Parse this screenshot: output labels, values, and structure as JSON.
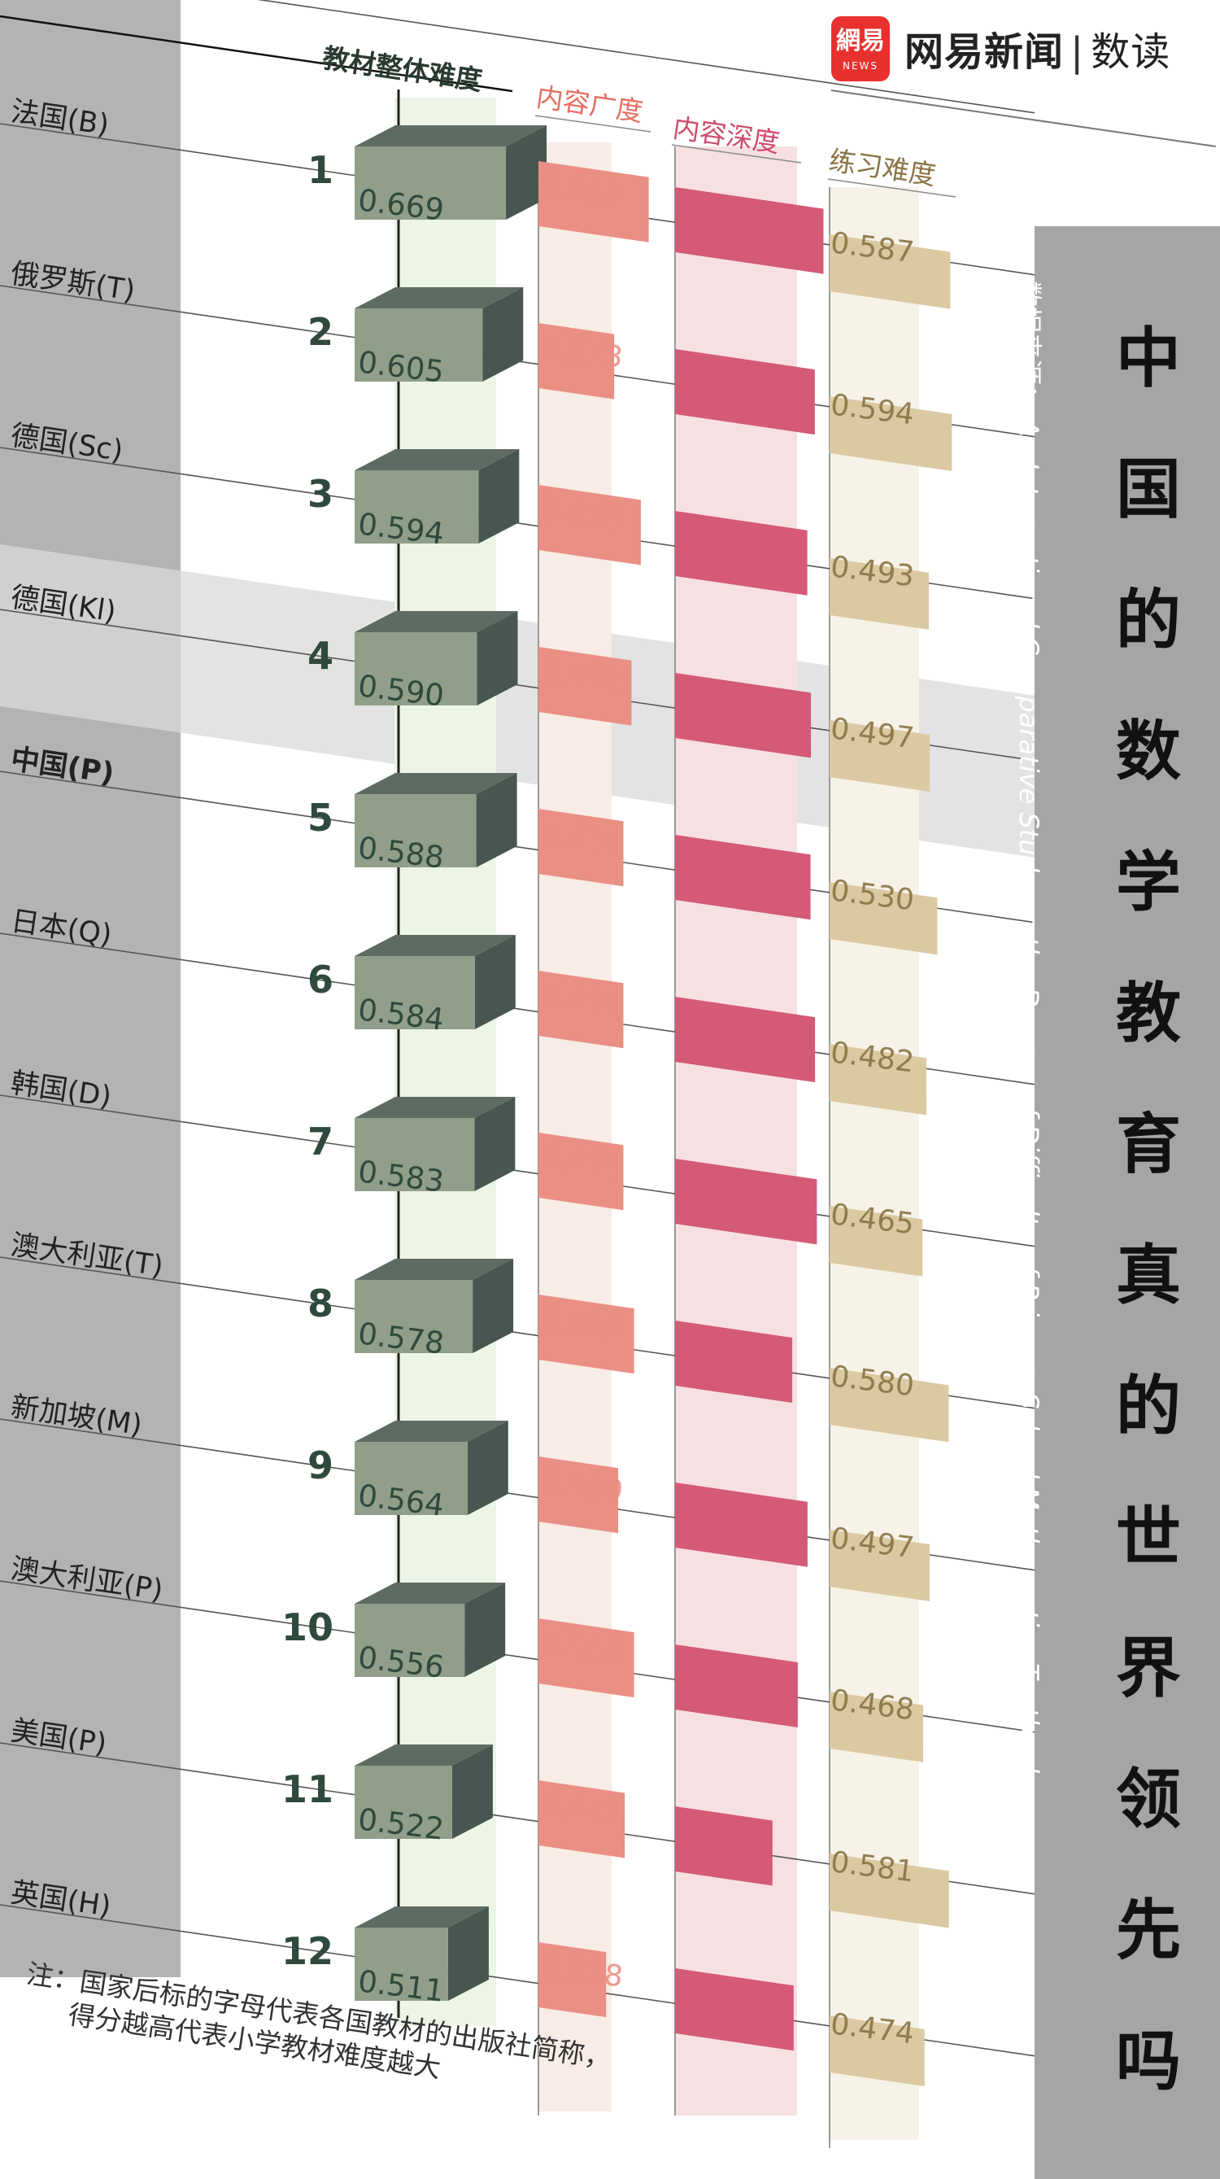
{
  "brand": {
    "logo_glyph": "網易",
    "logo_news": "NEWS",
    "name": "网易新闻",
    "separator": "|",
    "sub": "数读"
  },
  "title": "中国的数学教育真的世界领先吗",
  "source": {
    "label": "数据来源：",
    "text": "An International Comparative Study on the Degree of Difficulty of Primary School Mathematics Textbooks"
  },
  "note": {
    "line1": "注：国家后标的字母代表各国教材的出版社简称，",
    "line2": "得分越高代表小学教材难度越大"
  },
  "colors": {
    "box_front": "#919e8a",
    "box_top": "#5e6b63",
    "box_side": "#475650",
    "breadth": "#ea8f84",
    "depth": "#d45a76",
    "exercise": "#dbc9a1",
    "breadth_header": "#e56e62",
    "depth_header": "#cf4b6c",
    "exercise_header": "#8a7444",
    "left_panel": "#b3b3b3",
    "highlight_band": "#d9d9d9"
  },
  "chart_data": {
    "type": "bar",
    "title": "中国的数学教育真的世界领先吗",
    "series_headers": [
      "教材整体难度",
      "内容广度",
      "内容深度",
      "练习难度"
    ],
    "highlight": "中国(P)",
    "rows": [
      {
        "rank": "1",
        "country": "法国(B)",
        "overall": "0.669",
        "breadth": "0.609",
        "depth": "0.741",
        "exercise": "0.587"
      },
      {
        "rank": "2",
        "country": "俄罗斯(T)",
        "overall": "0.605",
        "breadth": "0.373",
        "depth": "0.703",
        "exercise": "0.594"
      },
      {
        "rank": "3",
        "country": "德国(Sc)",
        "overall": "0.594",
        "breadth": "0.555",
        "depth": "0.670",
        "exercise": "0.493"
      },
      {
        "rank": "4",
        "country": "德国(Kl)",
        "overall": "0.590",
        "breadth": "0.491",
        "depth": "0.686",
        "exercise": "0.497"
      },
      {
        "rank": "5",
        "country": "中国(P)",
        "overall": "0.588",
        "breadth": "0.436",
        "depth": "0.684",
        "exercise": "0.530"
      },
      {
        "rank": "6",
        "country": "日本(Q)",
        "overall": "0.584",
        "breadth": "0.436",
        "depth": "0.704",
        "exercise": "0.482"
      },
      {
        "rank": "7",
        "country": "韩国(D)",
        "overall": "0.583",
        "breadth": "0.436",
        "depth": "0.712",
        "exercise": "0.465"
      },
      {
        "rank": "8",
        "country": "澳大利亚(T)",
        "overall": "0.578",
        "breadth": "0.509",
        "depth": "0.604",
        "exercise": "0.580"
      },
      {
        "rank": "9",
        "country": "新加坡(M)",
        "overall": "0.564",
        "breadth": "0.400",
        "depth": "0.671",
        "exercise": "0.497"
      },
      {
        "rank": "10",
        "country": "澳大利亚(P)",
        "overall": "0.556",
        "breadth": "0.509",
        "depth": "0.628",
        "exercise": "0.468"
      },
      {
        "rank": "11",
        "country": "美国(P)",
        "overall": "0.522",
        "breadth": "0.445",
        "depth": "0.517",
        "exercise": "0.581"
      },
      {
        "rank": "12",
        "country": "英国(H)",
        "overall": "0.511",
        "breadth": "0.318",
        "depth": "0.610",
        "exercise": "0.474"
      }
    ]
  }
}
